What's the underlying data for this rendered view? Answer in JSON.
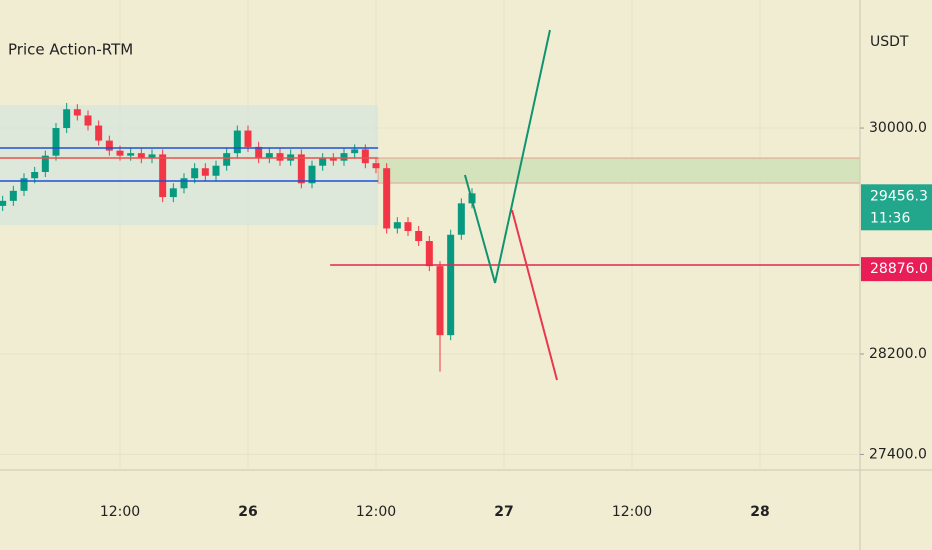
{
  "chart_data": {
    "type": "candlestick",
    "title": "Price Action-RTM",
    "y_axis_label": "USDT",
    "xlim": [
      0.75,
      81.375
    ],
    "ylim": [
      27276,
      31020
    ],
    "xticks": [
      {
        "value": 12,
        "label": "12:00"
      },
      {
        "value": 24,
        "label": "26"
      },
      {
        "value": 36,
        "label": "12:00"
      },
      {
        "value": 48,
        "label": "27"
      },
      {
        "value": 60,
        "label": "12:00"
      },
      {
        "value": 72,
        "label": "28"
      }
    ],
    "yticks": [
      {
        "value": 30000,
        "label": "30000.0"
      },
      {
        "value": 28200,
        "label": "28200.0"
      },
      {
        "value": 27400,
        "label": "27400.0"
      }
    ],
    "grid": true,
    "up_color": "#089981",
    "down_color": "#f23645",
    "x": [
      1,
      2,
      3,
      4,
      5,
      6,
      7,
      8,
      9,
      10,
      11,
      12,
      13,
      14,
      15,
      16,
      17,
      18,
      19,
      20,
      21,
      22,
      23,
      24,
      25,
      26,
      27,
      28,
      29,
      30,
      31,
      32,
      33,
      34,
      35,
      36,
      37,
      38,
      39,
      40,
      41,
      42,
      43,
      44,
      45
    ],
    "open": [
      29380,
      29420,
      29500,
      29600,
      29650,
      29780,
      30000,
      30150,
      30100,
      30020,
      29900,
      29820,
      29780,
      29800,
      29760,
      29790,
      29450,
      29520,
      29600,
      29680,
      29620,
      29700,
      29800,
      29980,
      29850,
      29760,
      29800,
      29740,
      29790,
      29560,
      29700,
      29760,
      29740,
      29800,
      29830,
      29720,
      29680,
      29200,
      29250,
      29180,
      29100,
      28900,
      28350,
      29150,
      29400
    ],
    "high": [
      29460,
      29540,
      29640,
      29690,
      29820,
      30040,
      30200,
      30190,
      30140,
      30060,
      29940,
      29860,
      29840,
      29840,
      29830,
      29830,
      29560,
      29640,
      29720,
      29720,
      29740,
      29840,
      30020,
      30020,
      29890,
      29840,
      29840,
      29830,
      29830,
      29740,
      29800,
      29800,
      29840,
      29870,
      29870,
      29760,
      29720,
      29290,
      29290,
      29220,
      29140,
      28940,
      29190,
      29440,
      29520
    ],
    "low": [
      29340,
      29380,
      29460,
      29560,
      29610,
      29740,
      29960,
      30060,
      29980,
      29860,
      29780,
      29740,
      29740,
      29720,
      29720,
      29410,
      29410,
      29480,
      29560,
      29580,
      29580,
      29660,
      29760,
      29810,
      29720,
      29720,
      29700,
      29700,
      29520,
      29520,
      29660,
      29700,
      29700,
      29760,
      29680,
      29640,
      29160,
      29160,
      29140,
      29060,
      28860,
      28060,
      28310,
      29110,
      29360
    ],
    "close": [
      29420,
      29500,
      29600,
      29650,
      29780,
      30000,
      30150,
      30100,
      30020,
      29900,
      29820,
      29780,
      29800,
      29760,
      29790,
      29450,
      29520,
      29600,
      29680,
      29620,
      29700,
      29800,
      29980,
      29850,
      29760,
      29800,
      29740,
      29790,
      29560,
      29700,
      29760,
      29740,
      29800,
      29830,
      29720,
      29680,
      29200,
      29250,
      29180,
      29100,
      28900,
      28350,
      29150,
      29400,
      29480
    ],
    "zones": [
      {
        "x": [
          0.75,
          36.2
        ],
        "y": [
          30183,
          29227
        ],
        "color": "#d7e6dc"
      },
      {
        "x": [
          36.2,
          81.375
        ],
        "y": [
          29761,
          29562
        ],
        "color": "#c9dfb4"
      }
    ],
    "lines": [
      {
        "x": [
          0.75,
          36.2
        ],
        "y": [
          29841,
          29841
        ],
        "color": "#1e4fd8"
      },
      {
        "x": [
          0.75,
          36.2
        ],
        "y": [
          29578,
          29578
        ],
        "color": "#1e4fd8"
      },
      {
        "x": [
          0.75,
          36.2
        ],
        "y": [
          29761,
          29761
        ],
        "color": "#e8504f"
      },
      {
        "x": [
          31.7,
          81.375
        ],
        "y": [
          28909,
          28909
        ],
        "color": "#e0284f"
      },
      {
        "x": [
          44.34,
          47.16,
          52.31
        ],
        "y": [
          29626,
          28766,
          30781
        ],
        "color": "#0f9470"
      },
      {
        "x": [
          48.75,
          52.97
        ],
        "y": [
          29347,
          27993
        ],
        "color": "#e8384f"
      }
    ],
    "price_tags": [
      {
        "value": 29456.3,
        "label": "29456.3",
        "sublabel": "11:36",
        "color": "#22a68c"
      },
      {
        "value": 28876,
        "label": "28876.0",
        "color": "#e91e57"
      }
    ]
  }
}
